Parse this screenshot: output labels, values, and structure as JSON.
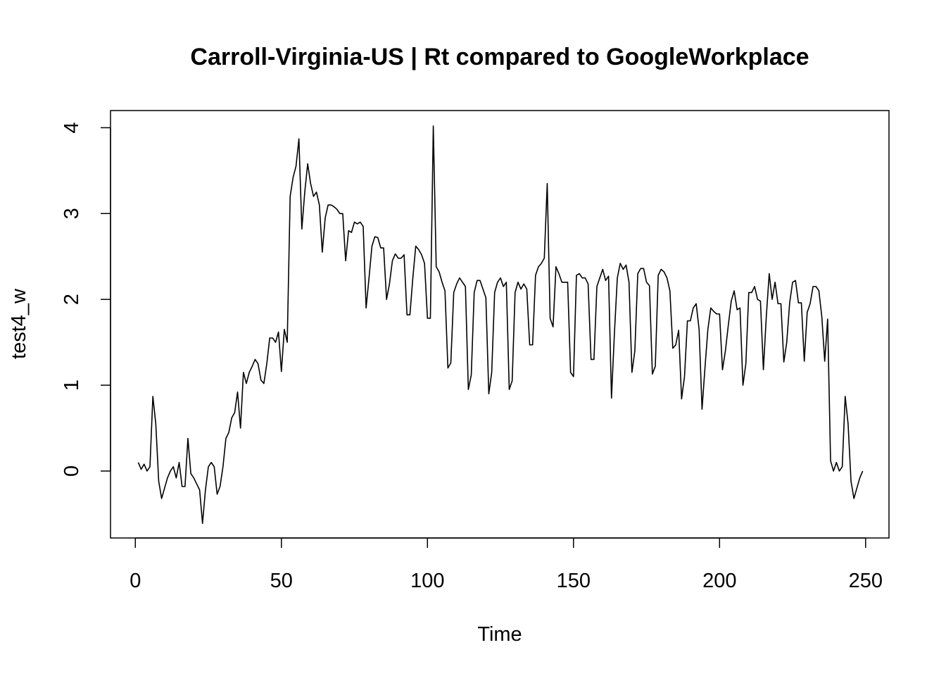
{
  "chart_data": {
    "type": "line",
    "title": "Carroll-Virginia-US | Rt compared to GoogleWorkplace",
    "xlabel": "Time",
    "ylabel": "test4_w",
    "xlim": [
      -8.5,
      258
    ],
    "ylim": [
      -0.78,
      4.2
    ],
    "x_ticks": [
      0,
      50,
      100,
      150,
      200,
      250
    ],
    "y_ticks": [
      0,
      1,
      2,
      3,
      4
    ],
    "x_tick_labels": [
      "0",
      "50",
      "100",
      "150",
      "200",
      "250"
    ],
    "y_tick_labels": [
      "0",
      "1",
      "2",
      "3",
      "4"
    ],
    "grid": false,
    "legend": "none",
    "series": [
      {
        "x_start": 1,
        "values": [
          0.1,
          0.02,
          0.08,
          0.0,
          0.05,
          0.87,
          0.55,
          -0.12,
          -0.32,
          -0.2,
          -0.08,
          0.0,
          0.05,
          -0.08,
          0.1,
          -0.18,
          -0.18,
          0.38,
          -0.03,
          -0.08,
          -0.15,
          -0.22,
          -0.61,
          -0.22,
          0.05,
          0.1,
          0.05,
          -0.27,
          -0.18,
          0.05,
          0.38,
          0.45,
          0.62,
          0.68,
          0.92,
          0.5,
          1.15,
          1.02,
          1.15,
          1.22,
          1.3,
          1.25,
          1.06,
          1.02,
          1.25,
          1.55,
          1.55,
          1.5,
          1.62,
          1.16,
          1.65,
          1.5,
          3.2,
          3.42,
          3.55,
          3.87,
          2.82,
          3.25,
          3.58,
          3.35,
          3.2,
          3.25,
          3.1,
          2.55,
          2.95,
          3.1,
          3.1,
          3.08,
          3.05,
          3.0,
          3.0,
          2.45,
          2.8,
          2.78,
          2.9,
          2.88,
          2.9,
          2.85,
          1.9,
          2.25,
          2.62,
          2.73,
          2.72,
          2.6,
          2.6,
          2.0,
          2.18,
          2.45,
          2.53,
          2.48,
          2.48,
          2.52,
          1.82,
          1.82,
          2.25,
          2.62,
          2.58,
          2.52,
          2.42,
          1.78,
          1.78,
          4.02,
          2.38,
          2.32,
          2.2,
          2.1,
          1.2,
          1.26,
          2.08,
          2.18,
          2.25,
          2.2,
          2.15,
          0.95,
          1.12,
          2.08,
          2.22,
          2.22,
          2.12,
          2.02,
          0.9,
          1.15,
          2.08,
          2.2,
          2.25,
          2.15,
          2.2,
          0.95,
          1.05,
          2.08,
          2.2,
          2.12,
          2.18,
          2.12,
          1.47,
          1.47,
          2.28,
          2.38,
          2.42,
          2.48,
          3.35,
          1.78,
          1.68,
          2.38,
          2.3,
          2.2,
          2.2,
          2.2,
          1.15,
          1.1,
          2.28,
          2.3,
          2.25,
          2.25,
          2.18,
          1.3,
          1.3,
          2.15,
          2.25,
          2.35,
          2.22,
          2.27,
          0.85,
          1.6,
          2.25,
          2.42,
          2.35,
          2.4,
          2.2,
          1.15,
          1.4,
          2.3,
          2.36,
          2.36,
          2.2,
          2.16,
          1.13,
          1.22,
          2.28,
          2.35,
          2.32,
          2.25,
          2.1,
          1.43,
          1.47,
          1.64,
          0.84,
          1.1,
          1.75,
          1.75,
          1.9,
          1.95,
          1.65,
          0.72,
          1.2,
          1.65,
          1.9,
          1.86,
          1.83,
          1.83,
          1.18,
          1.4,
          1.7,
          1.98,
          2.1,
          1.88,
          1.9,
          1.0,
          1.25,
          2.08,
          2.08,
          2.15,
          2.0,
          1.98,
          1.18,
          1.8,
          2.3,
          2.0,
          2.2,
          1.95,
          1.95,
          1.27,
          1.5,
          1.96,
          2.2,
          2.22,
          1.96,
          1.96,
          1.28,
          1.85,
          1.95,
          2.15,
          2.15,
          2.1,
          1.8,
          1.28,
          1.77,
          0.12,
          0.0,
          0.1,
          0.0,
          0.05,
          0.87,
          0.55,
          -0.12,
          -0.32,
          -0.2,
          -0.08,
          0.0
        ]
      }
    ]
  }
}
